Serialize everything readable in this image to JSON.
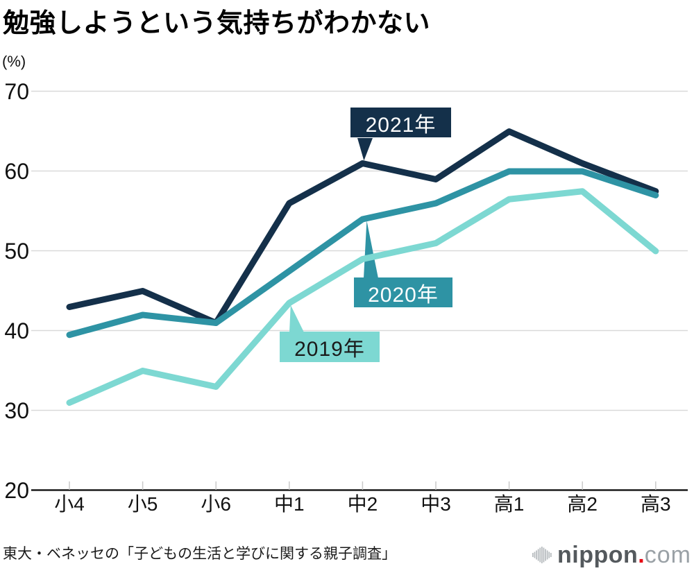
{
  "title": "勉強しようという気持ちがわかない",
  "unit_label": "(%)",
  "source": "東大・ベネッセの「子どもの生活と学びに関する親子調査」",
  "logo": {
    "name": "nippon",
    "dot": ".",
    "tld": "com",
    "bars_color": "#b5babd",
    "name_color": "#54595d",
    "dot_color": "#e60012",
    "tld_color": "#9aa1a6"
  },
  "colors": {
    "background": "#ffffff",
    "grid": "#d9d9d9",
    "axis": "#1a1a1a",
    "tick": "#c9c9c9",
    "text": "#111111"
  },
  "chart_data": {
    "type": "line",
    "title": "勉強しようという気持ちがわかない",
    "ylabel": "(%)",
    "categories": [
      "小4",
      "小5",
      "小6",
      "中1",
      "中2",
      "中3",
      "高1",
      "高2",
      "高3"
    ],
    "yticks": [
      70,
      60,
      50,
      40,
      30,
      20
    ],
    "ylim": [
      20,
      70
    ],
    "grid": "horizontal",
    "legend_position": "inline-callouts",
    "series": [
      {
        "name": "2021年",
        "color": "#14304a",
        "label_text_color": "#ffffff",
        "values": [
          43,
          45,
          41,
          56,
          61,
          59,
          65,
          61,
          57.5
        ]
      },
      {
        "name": "2020年",
        "color": "#2e93a4",
        "label_text_color": "#ffffff",
        "values": [
          39.5,
          42,
          41,
          47.5,
          54,
          56,
          60,
          60,
          57
        ]
      },
      {
        "name": "2019年",
        "color": "#7dd8d2",
        "label_text_color": "#1a1a1a",
        "values": [
          31,
          35,
          33,
          43.5,
          49,
          51,
          56.5,
          57.5,
          50
        ]
      }
    ]
  }
}
